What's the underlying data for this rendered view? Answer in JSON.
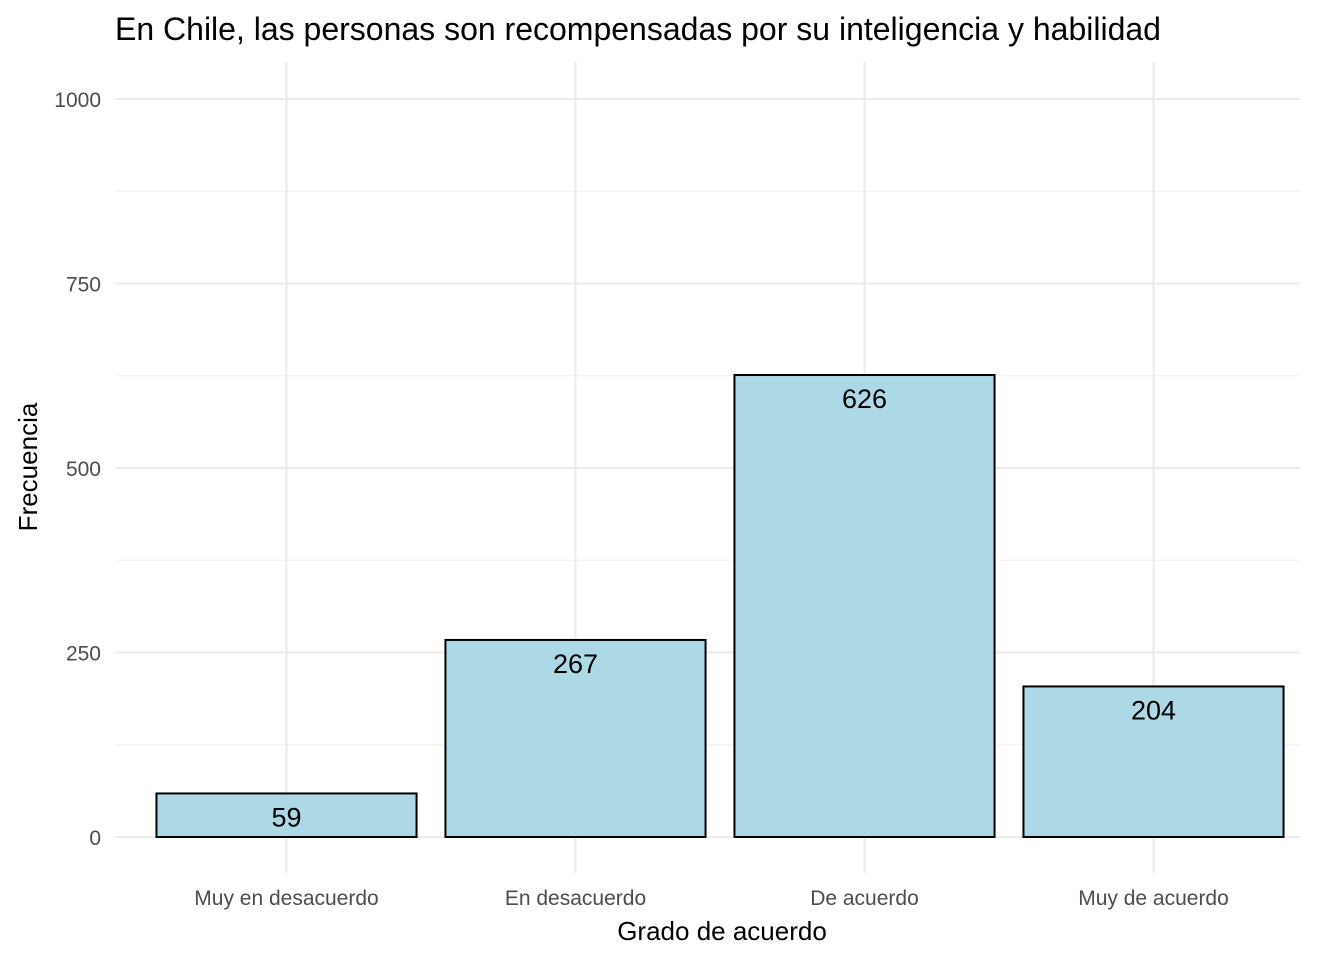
{
  "chart_data": {
    "type": "bar",
    "title": "En Chile, las personas son recompensadas por su inteligencia y habilidad",
    "xlabel": "Grado de acuerdo",
    "ylabel": "Frecuencia",
    "categories": [
      "Muy en desacuerdo",
      "En desacuerdo",
      "De acuerdo",
      "Muy de acuerdo"
    ],
    "values": [
      59,
      267,
      626,
      204
    ],
    "data_labels": [
      "59",
      "267",
      "626",
      "204"
    ],
    "yticks": [
      0,
      250,
      500,
      750,
      1000
    ],
    "ytick_labels": [
      "0",
      "250",
      "500",
      "750",
      "1000"
    ],
    "ylim": [
      -48,
      1050
    ],
    "grid": true,
    "bar_fill": "#add8e6",
    "bar_outline": "#000000"
  }
}
